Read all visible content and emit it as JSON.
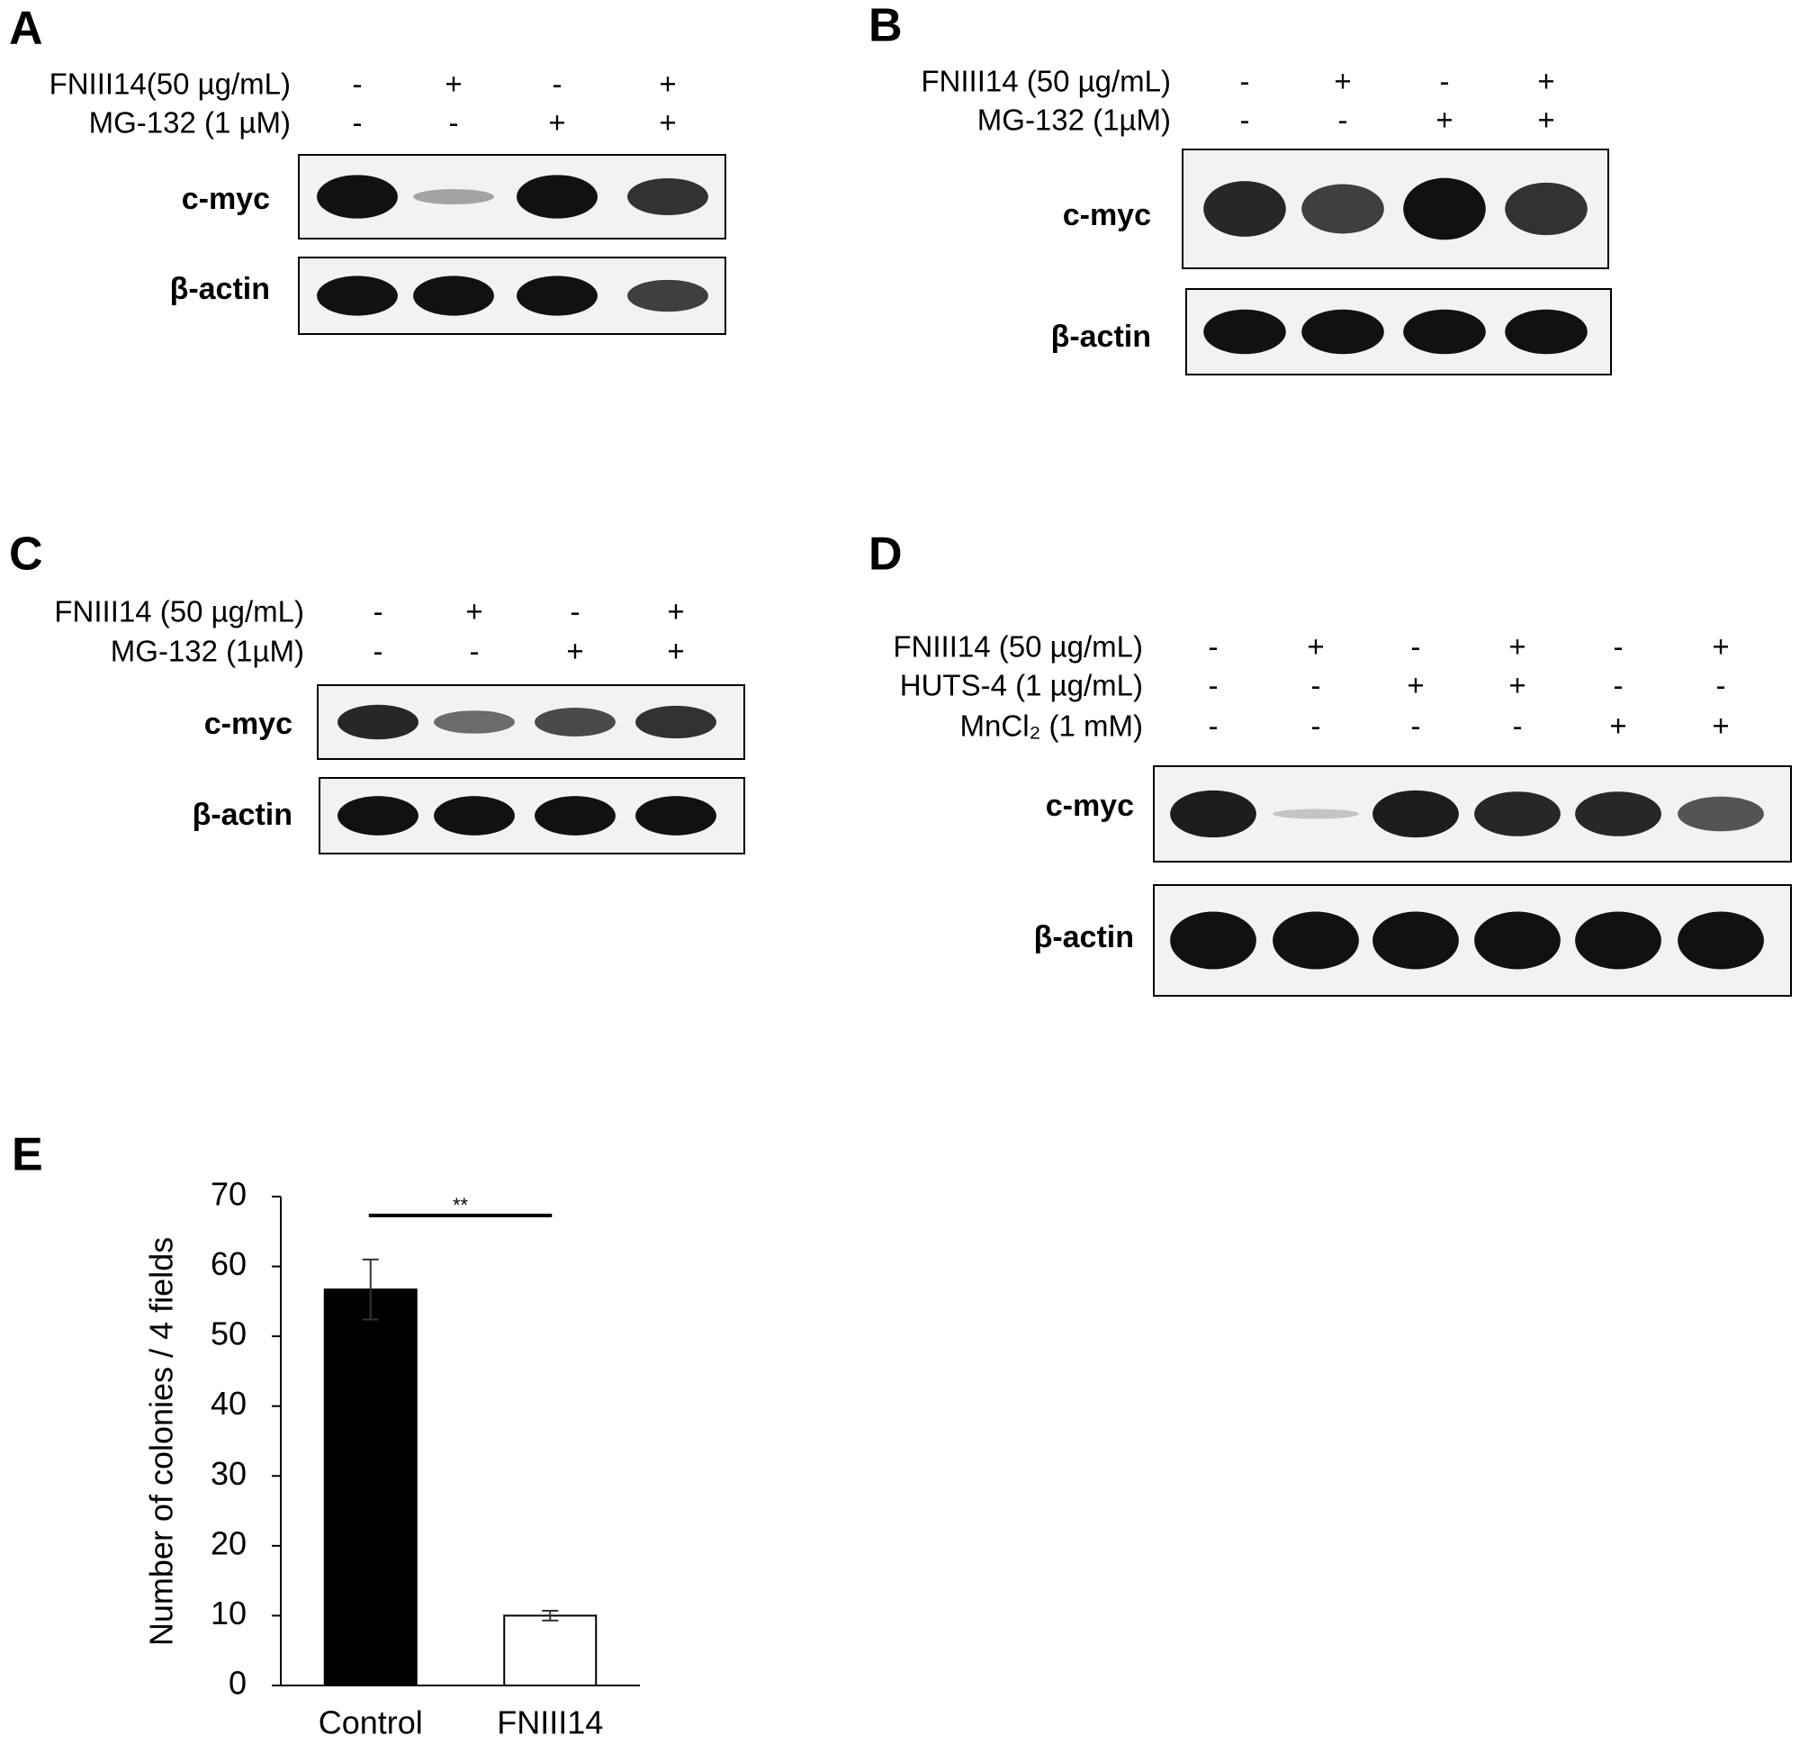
{
  "panels": [
    {
      "label": "A",
      "treatments": [
        {
          "name": "FNIII14(50  µg/mL)",
          "lanes": [
            "-",
            "+",
            "-",
            "+"
          ]
        },
        {
          "name": "MG-132 (1 µM)",
          "lanes": [
            "-",
            "-",
            "+",
            "+"
          ]
        }
      ],
      "blots": [
        "c-myc",
        "β-actin"
      ]
    },
    {
      "label": "B",
      "treatments": [
        {
          "name": "FNIII14  (50 µg/mL)",
          "lanes": [
            "-",
            "+",
            "-",
            "+"
          ]
        },
        {
          "name": "MG-132 (1µM)",
          "lanes": [
            "-",
            "-",
            "+",
            "+"
          ]
        }
      ],
      "blots": [
        "c-myc",
        "β-actin"
      ]
    },
    {
      "label": "C",
      "treatments": [
        {
          "name": "FNIII14  (50 µg/mL)",
          "lanes": [
            "-",
            "+",
            "-",
            "+"
          ]
        },
        {
          "name": "MG-132 (1µM)",
          "lanes": [
            "-",
            "-",
            "+",
            "+"
          ]
        }
      ],
      "blots": [
        "c-myc",
        "β-actin"
      ]
    },
    {
      "label": "D",
      "treatments": [
        {
          "name": "FNIII14  (50 µg/mL)",
          "lanes": [
            "-",
            "+",
            "-",
            "+",
            "-",
            "+"
          ]
        },
        {
          "name": "HUTS-4 (1 µg/mL)",
          "lanes": [
            "-",
            "-",
            "+",
            "+",
            "-",
            "-"
          ]
        },
        {
          "name": "MnCl₂ (1 mM)",
          "lanes": [
            "-",
            "-",
            "-",
            "-",
            "+",
            "+"
          ]
        }
      ],
      "blots": [
        "c-myc",
        "β-actin"
      ]
    }
  ],
  "chart_data": {
    "type": "bar",
    "panel": "E",
    "categories": [
      "Control",
      "FNIII14"
    ],
    "values": [
      56.7,
      10
    ],
    "errors": [
      4.3,
      0.7
    ],
    "colors": [
      "#000000",
      "#ffffff"
    ],
    "y_label": "Number of colonies / 4 fields",
    "significance": "**",
    "ylim": [
      0,
      70
    ],
    "yticks": [
      0,
      10,
      20,
      30,
      40,
      50,
      60,
      70
    ]
  }
}
